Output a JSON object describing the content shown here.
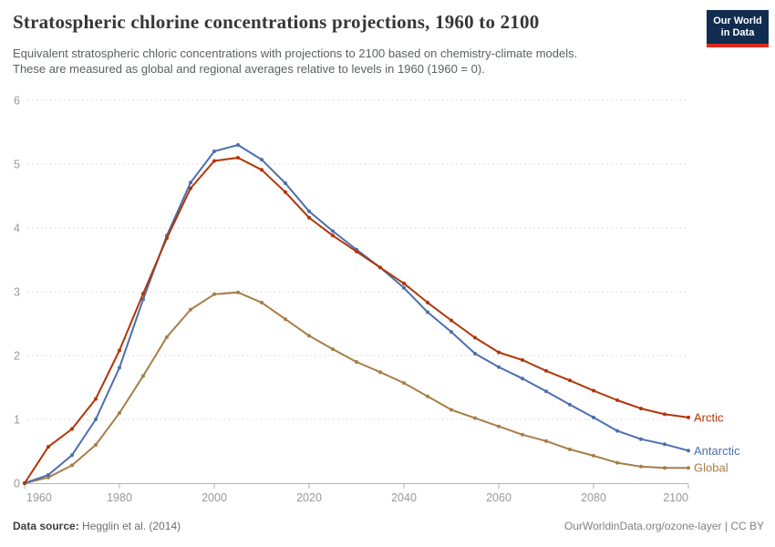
{
  "header": {
    "title": "Stratospheric chlorine concentrations projections, 1960 to 2100",
    "subtitle_line1": "Equivalent stratospheric chloric concentrations with projections to 2100 based on chemistry-climate models.",
    "subtitle_line2": "These are measured as global and regional averages relative to levels in 1960 (1960 = 0).",
    "logo": {
      "line1": "Our World",
      "line2": "in Data",
      "bg": "#102D50",
      "accent": "#DC2A1F"
    }
  },
  "chart_data": {
    "type": "line",
    "title": "Stratospheric chlorine concentrations projections, 1960 to 2100",
    "xlabel": "",
    "ylabel": "",
    "ylim": [
      0,
      6
    ],
    "yticks": [
      0,
      1,
      2,
      3,
      4,
      5,
      6
    ],
    "xticks": [
      1960,
      1980,
      2000,
      2020,
      2040,
      2060,
      2080,
      2100
    ],
    "grid": "dashed-horizontal",
    "legend_position": "right-end-labels",
    "x": [
      1960,
      1965,
      1970,
      1975,
      1980,
      1985,
      1990,
      1995,
      2000,
      2005,
      2010,
      2015,
      2020,
      2025,
      2030,
      2035,
      2040,
      2045,
      2050,
      2055,
      2060,
      2065,
      2070,
      2075,
      2080,
      2085,
      2090,
      2095,
      2100
    ],
    "series": [
      {
        "name": "Arctic",
        "color": "#B13507",
        "values": [
          0,
          0.57,
          0.85,
          1.32,
          2.08,
          2.97,
          3.84,
          4.62,
          5.05,
          5.1,
          4.91,
          4.56,
          4.16,
          3.88,
          3.63,
          3.38,
          3.13,
          2.83,
          2.55,
          2.28,
          2.05,
          1.93,
          1.76,
          1.61,
          1.45,
          1.3,
          1.17,
          1.08,
          1.03
        ]
      },
      {
        "name": "Antarctic",
        "color": "#4C6FAD",
        "values": [
          0,
          0.13,
          0.44,
          1.0,
          1.81,
          2.88,
          3.88,
          4.71,
          5.2,
          5.3,
          5.07,
          4.7,
          4.26,
          3.95,
          3.66,
          3.38,
          3.06,
          2.68,
          2.37,
          2.03,
          1.82,
          1.64,
          1.44,
          1.23,
          1.03,
          0.82,
          0.69,
          0.61,
          0.51
        ]
      },
      {
        "name": "Global",
        "color": "#A87E48",
        "values": [
          0,
          0.09,
          0.28,
          0.6,
          1.1,
          1.68,
          2.29,
          2.72,
          2.96,
          2.99,
          2.83,
          2.57,
          2.31,
          2.1,
          1.9,
          1.74,
          1.57,
          1.36,
          1.15,
          1.02,
          0.89,
          0.76,
          0.66,
          0.53,
          0.43,
          0.32,
          0.26,
          0.24,
          0.24
        ]
      }
    ],
    "axis_colors": {
      "axis_line": "#b3b3b3",
      "gridline": "#dcdcdc",
      "tick_label": "#999999"
    }
  },
  "footer": {
    "data_source_label": "Data source:",
    "data_source_value": "Hegglin et al. (2014)",
    "attribution": "OurWorldinData.org/ozone-layer | CC BY"
  }
}
